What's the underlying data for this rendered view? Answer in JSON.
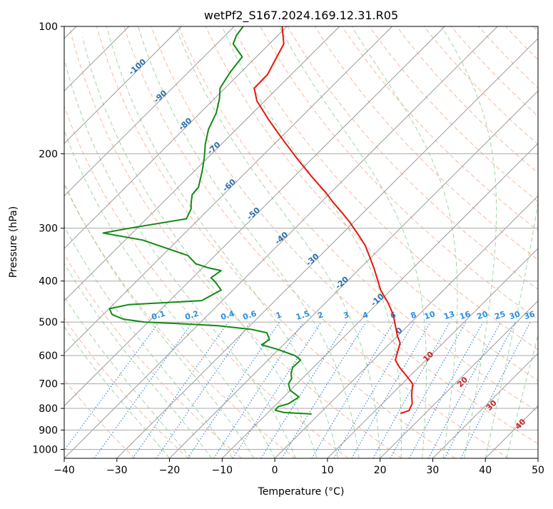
{
  "chart_data": {
    "type": "line",
    "title": "wetPf2_S167.2024.169.12.31.R05",
    "xlabel": "Temperature (°C)",
    "ylabel": "Pressure (hPa)",
    "xlim": [
      -40,
      50
    ],
    "ylim": [
      1050,
      100
    ],
    "y_scale": "log",
    "grid": true,
    "x_ticks": [
      -40,
      -30,
      -20,
      -10,
      0,
      10,
      20,
      30,
      40,
      50
    ],
    "y_ticks": [
      100,
      200,
      300,
      400,
      500,
      600,
      700,
      800,
      900,
      1000
    ],
    "colors": {
      "temperature": "#e8150d",
      "dewpoint": "#138a13",
      "dry_adiabat": "#f4a07f",
      "moist_adiabat": "#8cc98c",
      "mixing_ratio": "#2b7fd4",
      "isotherm": "#9a9a9a",
      "isotherm_label": "#2a6fae",
      "mixing_label": "#2b8ee0",
      "moist_label": "#cc2222"
    },
    "isotherm_labels": [
      "-100",
      "-90",
      "-80",
      "-70",
      "-60",
      "-50",
      "-40",
      "-30",
      "-20",
      "-10",
      "0"
    ],
    "mixing_ratio_labels": [
      "0.1",
      "0.2",
      "0.4",
      "0.6",
      "1",
      "1.5",
      "2",
      "3",
      "4",
      "6",
      "8",
      "10",
      "13",
      "16",
      "20",
      "25",
      "30",
      "36"
    ],
    "moist_adiabat_labels": [
      "10",
      "20",
      "30",
      "40"
    ],
    "series": [
      {
        "role": "temperature",
        "points": [
          [
            23.9,
            822
          ],
          [
            25.5,
            810
          ],
          [
            26.1,
            780
          ],
          [
            26.0,
            740
          ],
          [
            26.2,
            700
          ],
          [
            25.0,
            670
          ],
          [
            23.7,
            640
          ],
          [
            22.9,
            615
          ],
          [
            23.3,
            590
          ],
          [
            23.8,
            560
          ],
          [
            23.3,
            540
          ],
          [
            22.9,
            510
          ],
          [
            22.5,
            480
          ],
          [
            21.5,
            450
          ],
          [
            20.1,
            420
          ],
          [
            19.6,
            400
          ],
          [
            18.9,
            375
          ],
          [
            18.0,
            350
          ],
          [
            17.2,
            330
          ],
          [
            15.8,
            310
          ],
          [
            14.2,
            290
          ],
          [
            12.7,
            275
          ],
          [
            11.0,
            260
          ],
          [
            9.8,
            248
          ],
          [
            6.8,
            225
          ],
          [
            4.2,
            205
          ],
          [
            1.5,
            185
          ],
          [
            -1.2,
            166
          ],
          [
            -3.4,
            150
          ],
          [
            -3.9,
            140
          ],
          [
            -1.4,
            130
          ],
          [
            0.1,
            120
          ],
          [
            1.7,
            110
          ],
          [
            1.4,
            100
          ]
        ]
      },
      {
        "role": "dewpoint",
        "points": [
          [
            7.0,
            825
          ],
          [
            4.7,
            822
          ],
          [
            1.7,
            818
          ],
          [
            0.1,
            808
          ],
          [
            0.6,
            793
          ],
          [
            2.6,
            780
          ],
          [
            4.6,
            752
          ],
          [
            2.9,
            725
          ],
          [
            2.6,
            700
          ],
          [
            3.2,
            680
          ],
          [
            3.1,
            660
          ],
          [
            3.4,
            640
          ],
          [
            4.9,
            615
          ],
          [
            3.8,
            600
          ],
          [
            0.5,
            580
          ],
          [
            -2.5,
            566
          ],
          [
            -1.0,
            550
          ],
          [
            -1.5,
            530
          ],
          [
            -4.6,
            520
          ],
          [
            -10.8,
            510
          ],
          [
            -17.0,
            505
          ],
          [
            -24.8,
            500
          ],
          [
            -28.8,
            492
          ],
          [
            -30.9,
            480
          ],
          [
            -31.4,
            465
          ],
          [
            -27.8,
            455
          ],
          [
            -13.9,
            445
          ],
          [
            -10.2,
            420
          ],
          [
            -11.3,
            402
          ],
          [
            -12.1,
            393
          ],
          [
            -10.2,
            378
          ],
          [
            -12.7,
            372
          ],
          [
            -15.0,
            364
          ],
          [
            -16.5,
            348
          ],
          [
            -25.1,
            320
          ],
          [
            -32.6,
            308
          ],
          [
            -27.6,
            300
          ],
          [
            -16.8,
            285
          ],
          [
            -15.9,
            270
          ],
          [
            -15.9,
            262
          ],
          [
            -15.7,
            250
          ],
          [
            -14.5,
            240
          ],
          [
            -13.8,
            220
          ],
          [
            -13.4,
            205
          ],
          [
            -13.2,
            190
          ],
          [
            -12.6,
            175
          ],
          [
            -11.1,
            160
          ],
          [
            -10.5,
            148
          ],
          [
            -10.4,
            140
          ],
          [
            -9.6,
            135
          ],
          [
            -8.4,
            128
          ],
          [
            -6.2,
            118
          ],
          [
            -7.9,
            110
          ],
          [
            -7.3,
            105
          ],
          [
            -6.0,
            100
          ]
        ]
      }
    ]
  }
}
